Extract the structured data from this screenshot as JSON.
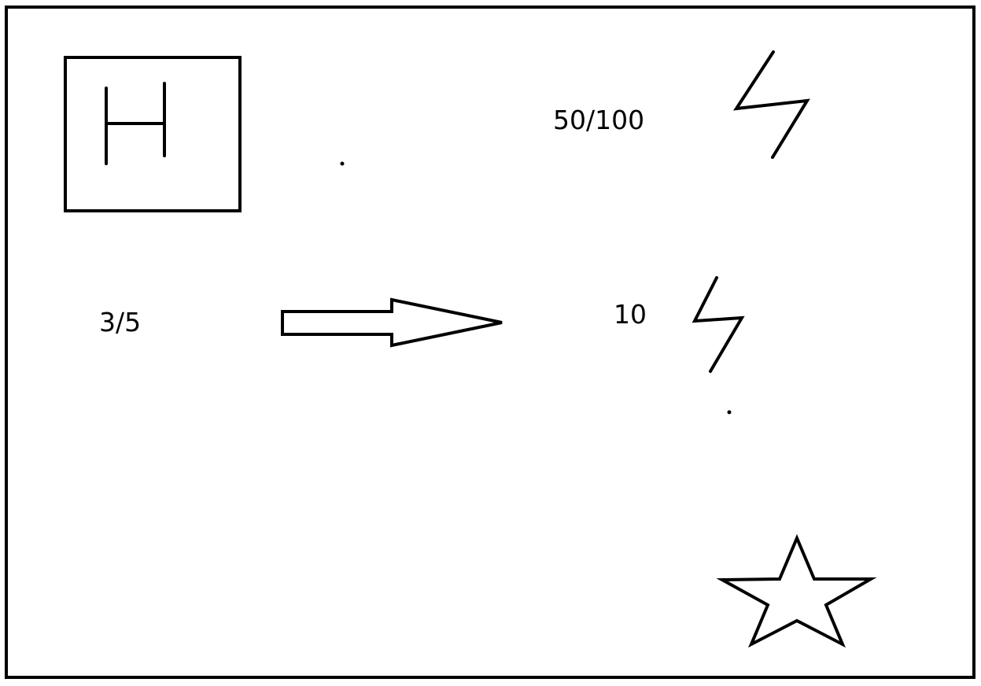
{
  "labels": {
    "score": "50/100",
    "fraction": "3/5",
    "count": "10"
  },
  "icons": {
    "h_box": "h-letter-box-icon",
    "arrow": "right-arrow-icon",
    "bolt_top": "lightning-bolt-icon",
    "bolt_middle": "lightning-bolt-icon",
    "star": "star-icon"
  },
  "colors": {
    "stroke": "#000000",
    "background": "#ffffff"
  }
}
